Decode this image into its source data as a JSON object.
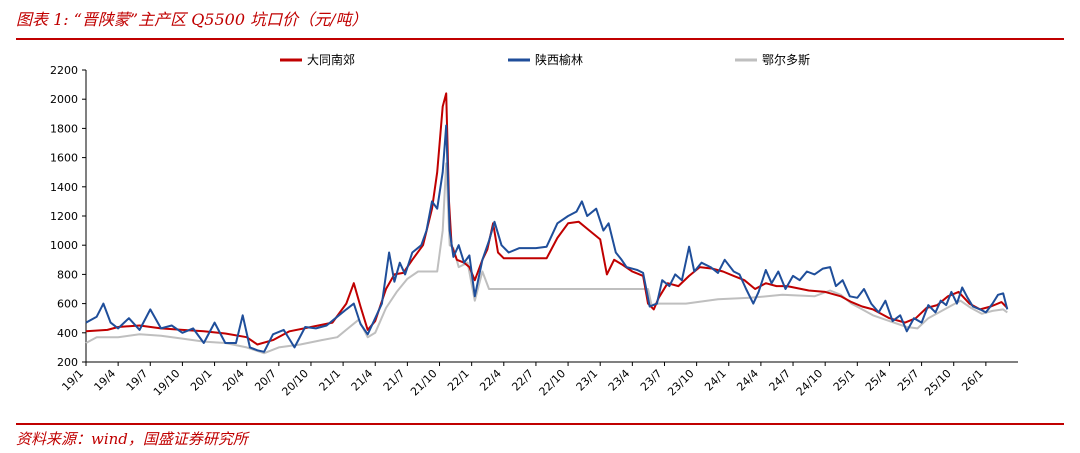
{
  "figure": {
    "title": "图表 1:   “晋陕蒙”主产区 Q5500 坑口价（元/吨）",
    "source": "资料来源：wind，国盛证券研究所"
  },
  "chart_data": {
    "type": "line",
    "xlabel": "",
    "ylabel": "",
    "ylim": [
      200,
      2200
    ],
    "yticks": [
      200,
      400,
      600,
      800,
      1000,
      1200,
      1400,
      1600,
      1800,
      2000,
      2200
    ],
    "xlim": [
      "2019-01",
      "2026-04"
    ],
    "xticks": [
      "19/1",
      "19/4",
      "19/7",
      "19/10",
      "20/1",
      "20/4",
      "20/7",
      "20/10",
      "21/1",
      "21/4",
      "21/7",
      "21/10",
      "22/1",
      "22/4",
      "22/7",
      "22/10",
      "23/1",
      "23/4",
      "23/7",
      "23/10",
      "24/1",
      "24/4",
      "24/7",
      "24/10",
      "25/1",
      "25/4",
      "25/7",
      "25/10",
      "26/1"
    ],
    "grid": false,
    "legend_position": "top",
    "series": [
      {
        "name": "大同南郊",
        "color": "#c00000",
        "points": [
          [
            "2019-01-01",
            410
          ],
          [
            "2019-03-01",
            420
          ],
          [
            "2019-04-01",
            440
          ],
          [
            "2019-06-01",
            450
          ],
          [
            "2019-08-01",
            430
          ],
          [
            "2019-10-01",
            420
          ],
          [
            "2019-12-01",
            410
          ],
          [
            "2020-02-01",
            395
          ],
          [
            "2020-04-01",
            370
          ],
          [
            "2020-05-01",
            320
          ],
          [
            "2020-06-15",
            350
          ],
          [
            "2020-08-01",
            410
          ],
          [
            "2020-10-01",
            440
          ],
          [
            "2020-12-01",
            470
          ],
          [
            "2021-01-10",
            600
          ],
          [
            "2021-02-01",
            740
          ],
          [
            "2021-02-20",
            580
          ],
          [
            "2021-03-10",
            420
          ],
          [
            "2021-04-01",
            480
          ],
          [
            "2021-05-01",
            700
          ],
          [
            "2021-05-25",
            800
          ],
          [
            "2021-06-20",
            810
          ],
          [
            "2021-07-15",
            900
          ],
          [
            "2021-08-15",
            1000
          ],
          [
            "2021-09-10",
            1250
          ],
          [
            "2021-09-25",
            1500
          ],
          [
            "2021-10-10",
            1950
          ],
          [
            "2021-10-20",
            2040
          ],
          [
            "2021-10-28",
            1300
          ],
          [
            "2021-11-05",
            1000
          ],
          [
            "2021-11-20",
            900
          ],
          [
            "2021-12-10",
            880
          ],
          [
            "2021-12-25",
            850
          ],
          [
            "2022-01-10",
            760
          ],
          [
            "2022-02-01",
            900
          ],
          [
            "2022-02-15",
            970
          ],
          [
            "2022-03-01",
            1150
          ],
          [
            "2022-03-15",
            950
          ],
          [
            "2022-04-01",
            910
          ],
          [
            "2022-06-01",
            910
          ],
          [
            "2022-08-01",
            910
          ],
          [
            "2022-09-01",
            1050
          ],
          [
            "2022-10-01",
            1150
          ],
          [
            "2022-11-01",
            1160
          ],
          [
            "2022-12-01",
            1100
          ],
          [
            "2023-01-01",
            1040
          ],
          [
            "2023-01-20",
            800
          ],
          [
            "2023-02-10",
            900
          ],
          [
            "2023-03-01",
            870
          ],
          [
            "2023-04-01",
            820
          ],
          [
            "2023-05-01",
            790
          ],
          [
            "2023-05-15",
            600
          ],
          [
            "2023-06-01",
            560
          ],
          [
            "2023-06-15",
            640
          ],
          [
            "2023-07-10",
            740
          ],
          [
            "2023-08-10",
            720
          ],
          [
            "2023-09-10",
            790
          ],
          [
            "2023-10-10",
            850
          ],
          [
            "2023-11-15",
            840
          ],
          [
            "2023-12-15",
            820
          ],
          [
            "2024-01-15",
            790
          ],
          [
            "2024-02-15",
            760
          ],
          [
            "2024-03-15",
            700
          ],
          [
            "2024-04-15",
            740
          ],
          [
            "2024-05-15",
            720
          ],
          [
            "2024-06-15",
            720
          ],
          [
            "2024-08-15",
            690
          ],
          [
            "2024-10-01",
            680
          ],
          [
            "2024-11-15",
            650
          ],
          [
            "2024-12-15",
            610
          ],
          [
            "2025-01-15",
            580
          ],
          [
            "2025-02-15",
            560
          ],
          [
            "2025-04-01",
            500
          ],
          [
            "2025-05-15",
            470
          ],
          [
            "2025-06-15",
            500
          ],
          [
            "2025-07-15",
            570
          ],
          [
            "2025-08-15",
            590
          ],
          [
            "2025-09-15",
            650
          ],
          [
            "2025-10-15",
            680
          ],
          [
            "2025-11-15",
            600
          ],
          [
            "2025-12-15",
            560
          ],
          [
            "2026-01-15",
            580
          ],
          [
            "2026-02-15",
            610
          ],
          [
            "2026-03-01",
            570
          ]
        ]
      },
      {
        "name": "陕西榆林",
        "color": "#1f4e9a",
        "points": [
          [
            "2019-01-01",
            470
          ],
          [
            "2019-02-01",
            510
          ],
          [
            "2019-02-20",
            600
          ],
          [
            "2019-03-10",
            470
          ],
          [
            "2019-04-01",
            430
          ],
          [
            "2019-05-01",
            500
          ],
          [
            "2019-06-01",
            420
          ],
          [
            "2019-07-01",
            560
          ],
          [
            "2019-08-01",
            430
          ],
          [
            "2019-09-01",
            450
          ],
          [
            "2019-10-01",
            400
          ],
          [
            "2019-11-01",
            430
          ],
          [
            "2019-12-01",
            330
          ],
          [
            "2020-01-01",
            470
          ],
          [
            "2020-02-01",
            330
          ],
          [
            "2020-03-01",
            330
          ],
          [
            "2020-03-20",
            520
          ],
          [
            "2020-04-10",
            300
          ],
          [
            "2020-05-01",
            280
          ],
          [
            "2020-05-20",
            270
          ],
          [
            "2020-06-15",
            390
          ],
          [
            "2020-07-15",
            420
          ],
          [
            "2020-08-15",
            300
          ],
          [
            "2020-09-15",
            440
          ],
          [
            "2020-10-15",
            430
          ],
          [
            "2020-11-15",
            450
          ],
          [
            "2020-12-15",
            510
          ],
          [
            "2021-01-10",
            560
          ],
          [
            "2021-02-01",
            600
          ],
          [
            "2021-02-20",
            460
          ],
          [
            "2021-03-10",
            390
          ],
          [
            "2021-04-01",
            500
          ],
          [
            "2021-04-20",
            600
          ],
          [
            "2021-05-10",
            950
          ],
          [
            "2021-05-25",
            750
          ],
          [
            "2021-06-10",
            880
          ],
          [
            "2021-06-25",
            800
          ],
          [
            "2021-07-15",
            950
          ],
          [
            "2021-08-10",
            1000
          ],
          [
            "2021-08-25",
            1100
          ],
          [
            "2021-09-10",
            1300
          ],
          [
            "2021-09-25",
            1250
          ],
          [
            "2021-10-10",
            1500
          ],
          [
            "2021-10-20",
            1820
          ],
          [
            "2021-10-30",
            1100
          ],
          [
            "2021-11-10",
            920
          ],
          [
            "2021-11-25",
            1000
          ],
          [
            "2021-12-10",
            880
          ],
          [
            "2021-12-25",
            930
          ],
          [
            "2022-01-10",
            650
          ],
          [
            "2022-02-01",
            900
          ],
          [
            "2022-02-20",
            1030
          ],
          [
            "2022-03-05",
            1160
          ],
          [
            "2022-03-25",
            1000
          ],
          [
            "2022-04-15",
            950
          ],
          [
            "2022-05-15",
            980
          ],
          [
            "2022-07-01",
            980
          ],
          [
            "2022-08-01",
            990
          ],
          [
            "2022-09-01",
            1150
          ],
          [
            "2022-10-01",
            1200
          ],
          [
            "2022-10-25",
            1230
          ],
          [
            "2022-11-10",
            1300
          ],
          [
            "2022-11-25",
            1200
          ],
          [
            "2022-12-20",
            1250
          ],
          [
            "2023-01-10",
            1100
          ],
          [
            "2023-01-25",
            1150
          ],
          [
            "2023-02-15",
            950
          ],
          [
            "2023-03-01",
            900
          ],
          [
            "2023-03-15",
            850
          ],
          [
            "2023-04-15",
            830
          ],
          [
            "2023-05-01",
            810
          ],
          [
            "2023-05-20",
            580
          ],
          [
            "2023-06-10",
            600
          ],
          [
            "2023-06-25",
            760
          ],
          [
            "2023-07-15",
            720
          ],
          [
            "2023-08-01",
            800
          ],
          [
            "2023-08-20",
            760
          ],
          [
            "2023-09-10",
            990
          ],
          [
            "2023-09-25",
            820
          ],
          [
            "2023-10-15",
            880
          ],
          [
            "2023-11-10",
            850
          ],
          [
            "2023-12-01",
            810
          ],
          [
            "2023-12-20",
            900
          ],
          [
            "2024-01-15",
            820
          ],
          [
            "2024-02-01",
            800
          ],
          [
            "2024-02-20",
            700
          ],
          [
            "2024-03-10",
            600
          ],
          [
            "2024-03-25",
            680
          ],
          [
            "2024-04-15",
            830
          ],
          [
            "2024-05-01",
            740
          ],
          [
            "2024-05-20",
            820
          ],
          [
            "2024-06-10",
            700
          ],
          [
            "2024-07-01",
            790
          ],
          [
            "2024-07-20",
            760
          ],
          [
            "2024-08-10",
            820
          ],
          [
            "2024-09-01",
            800
          ],
          [
            "2024-09-25",
            840
          ],
          [
            "2024-10-15",
            850
          ],
          [
            "2024-11-01",
            720
          ],
          [
            "2024-11-20",
            760
          ],
          [
            "2024-12-10",
            650
          ],
          [
            "2025-01-01",
            640
          ],
          [
            "2025-01-20",
            700
          ],
          [
            "2025-02-10",
            600
          ],
          [
            "2025-03-01",
            540
          ],
          [
            "2025-03-20",
            620
          ],
          [
            "2025-04-10",
            480
          ],
          [
            "2025-05-01",
            520
          ],
          [
            "2025-05-20",
            410
          ],
          [
            "2025-06-10",
            500
          ],
          [
            "2025-07-01",
            470
          ],
          [
            "2025-07-20",
            590
          ],
          [
            "2025-08-10",
            540
          ],
          [
            "2025-08-25",
            620
          ],
          [
            "2025-09-10",
            590
          ],
          [
            "2025-09-25",
            680
          ],
          [
            "2025-10-10",
            600
          ],
          [
            "2025-10-25",
            710
          ],
          [
            "2025-11-10",
            640
          ],
          [
            "2025-11-25",
            580
          ],
          [
            "2025-12-15",
            560
          ],
          [
            "2026-01-01",
            540
          ],
          [
            "2026-01-20",
            600
          ],
          [
            "2026-02-05",
            660
          ],
          [
            "2026-02-20",
            670
          ],
          [
            "2026-03-01",
            560
          ]
        ]
      },
      {
        "name": "鄂尔多斯",
        "color": "#bfbfbf",
        "points": [
          [
            "2019-01-01",
            330
          ],
          [
            "2019-02-01",
            370
          ],
          [
            "2019-04-01",
            370
          ],
          [
            "2019-06-01",
            390
          ],
          [
            "2019-08-01",
            380
          ],
          [
            "2019-10-01",
            360
          ],
          [
            "2019-12-01",
            340
          ],
          [
            "2020-02-01",
            330
          ],
          [
            "2020-04-01",
            300
          ],
          [
            "2020-05-20",
            260
          ],
          [
            "2020-07-01",
            300
          ],
          [
            "2020-09-01",
            320
          ],
          [
            "2020-11-01",
            350
          ],
          [
            "2020-12-15",
            370
          ],
          [
            "2021-01-15",
            430
          ],
          [
            "2021-02-15",
            490
          ],
          [
            "2021-03-10",
            370
          ],
          [
            "2021-04-01",
            400
          ],
          [
            "2021-05-01",
            570
          ],
          [
            "2021-06-01",
            680
          ],
          [
            "2021-07-01",
            770
          ],
          [
            "2021-08-01",
            820
          ],
          [
            "2021-09-01",
            820
          ],
          [
            "2021-09-25",
            820
          ],
          [
            "2021-10-10",
            1100
          ],
          [
            "2021-10-20",
            1560
          ],
          [
            "2021-10-30",
            1000
          ],
          [
            "2021-11-10",
            980
          ],
          [
            "2021-11-25",
            850
          ],
          [
            "2021-12-20",
            880
          ],
          [
            "2022-01-10",
            620
          ],
          [
            "2022-02-01",
            820
          ],
          [
            "2022-02-20",
            700
          ],
          [
            "2022-04-01",
            700
          ],
          [
            "2022-08-01",
            700
          ],
          [
            "2022-12-01",
            700
          ],
          [
            "2023-03-01",
            700
          ],
          [
            "2023-05-15",
            700
          ],
          [
            "2023-05-25",
            590
          ],
          [
            "2023-06-15",
            600
          ],
          [
            "2023-09-01",
            600
          ],
          [
            "2023-12-01",
            630
          ],
          [
            "2024-03-01",
            640
          ],
          [
            "2024-06-01",
            660
          ],
          [
            "2024-09-01",
            650
          ],
          [
            "2024-10-15",
            690
          ],
          [
            "2024-11-15",
            660
          ],
          [
            "2024-12-15",
            600
          ],
          [
            "2025-01-15",
            560
          ],
          [
            "2025-02-15",
            520
          ],
          [
            "2025-04-01",
            480
          ],
          [
            "2025-05-20",
            440
          ],
          [
            "2025-06-20",
            430
          ],
          [
            "2025-07-20",
            500
          ],
          [
            "2025-08-20",
            540
          ],
          [
            "2025-09-20",
            580
          ],
          [
            "2025-10-20",
            620
          ],
          [
            "2025-11-20",
            570
          ],
          [
            "2025-12-20",
            530
          ],
          [
            "2026-01-20",
            550
          ],
          [
            "2026-02-20",
            560
          ],
          [
            "2026-03-01",
            540
          ]
        ]
      }
    ]
  }
}
